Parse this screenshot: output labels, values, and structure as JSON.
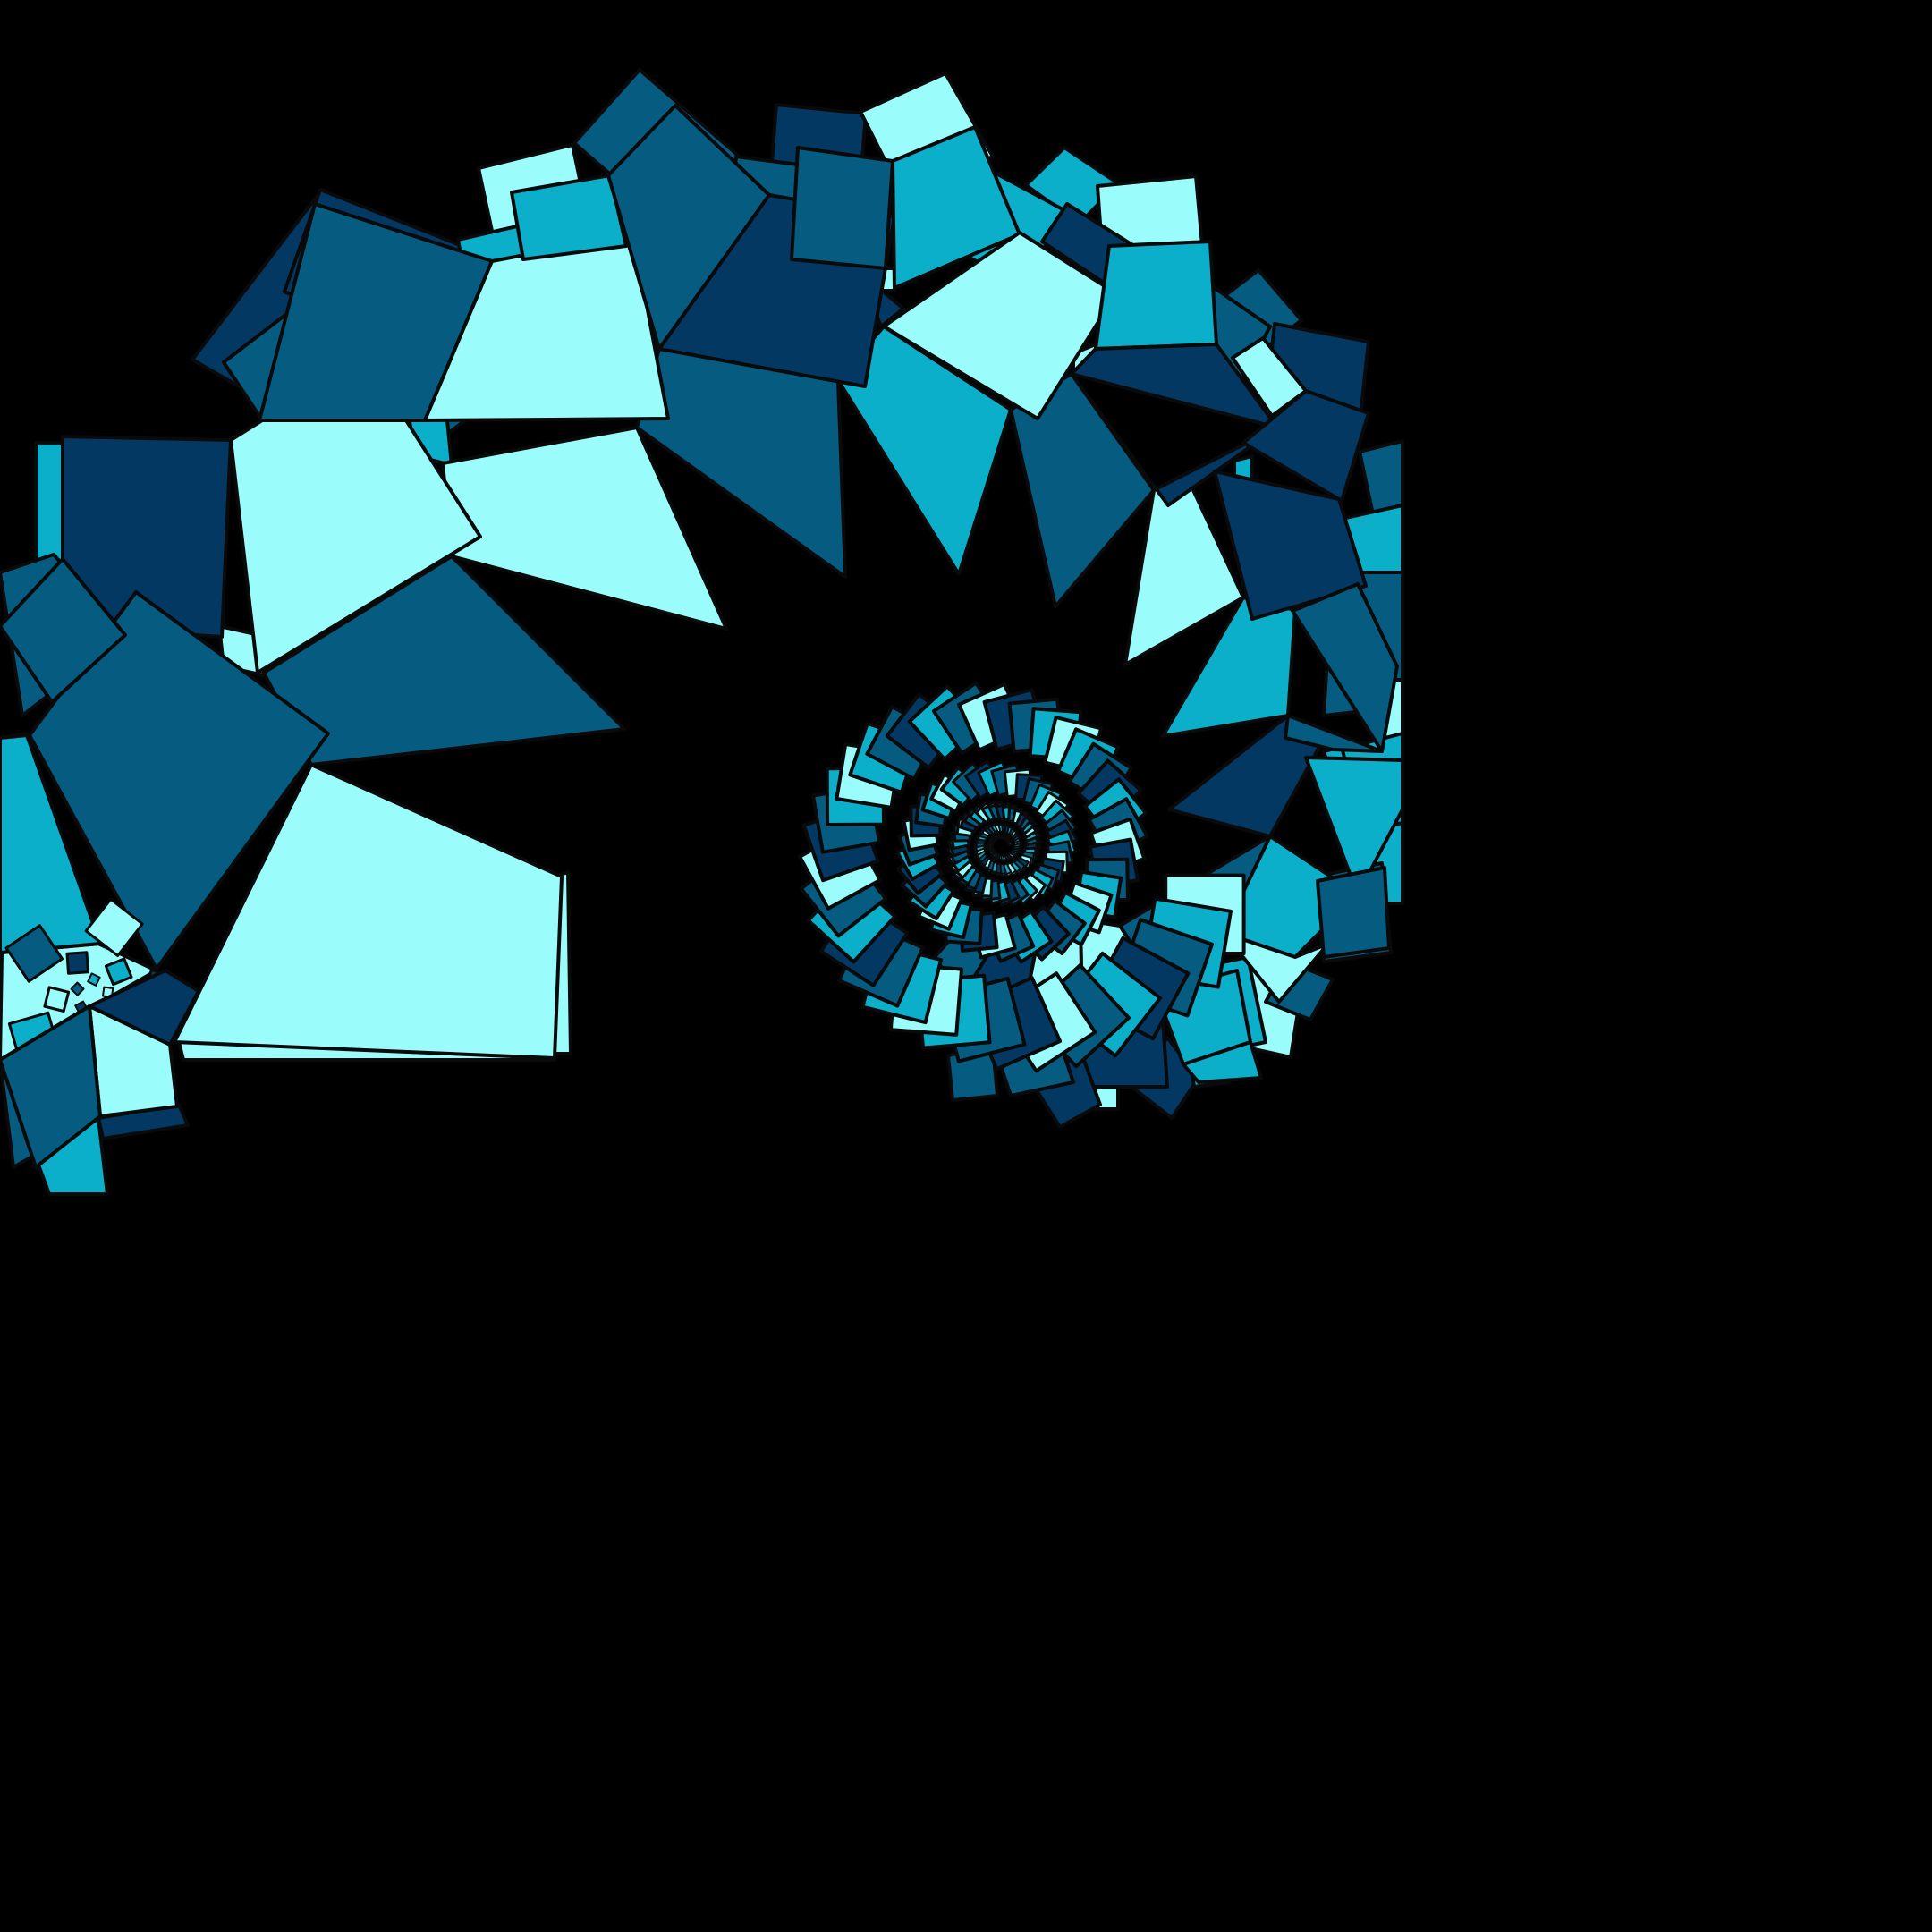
{
  "artwork": {
    "background": "#000000",
    "palette": {
      "pale": "#9AFCFB",
      "cyan": "#0CAFC9",
      "teal": "#055C80",
      "navy": "#033862",
      "outline": "#0a0a0a"
    },
    "description_kind": "spiral-of-squares"
  }
}
